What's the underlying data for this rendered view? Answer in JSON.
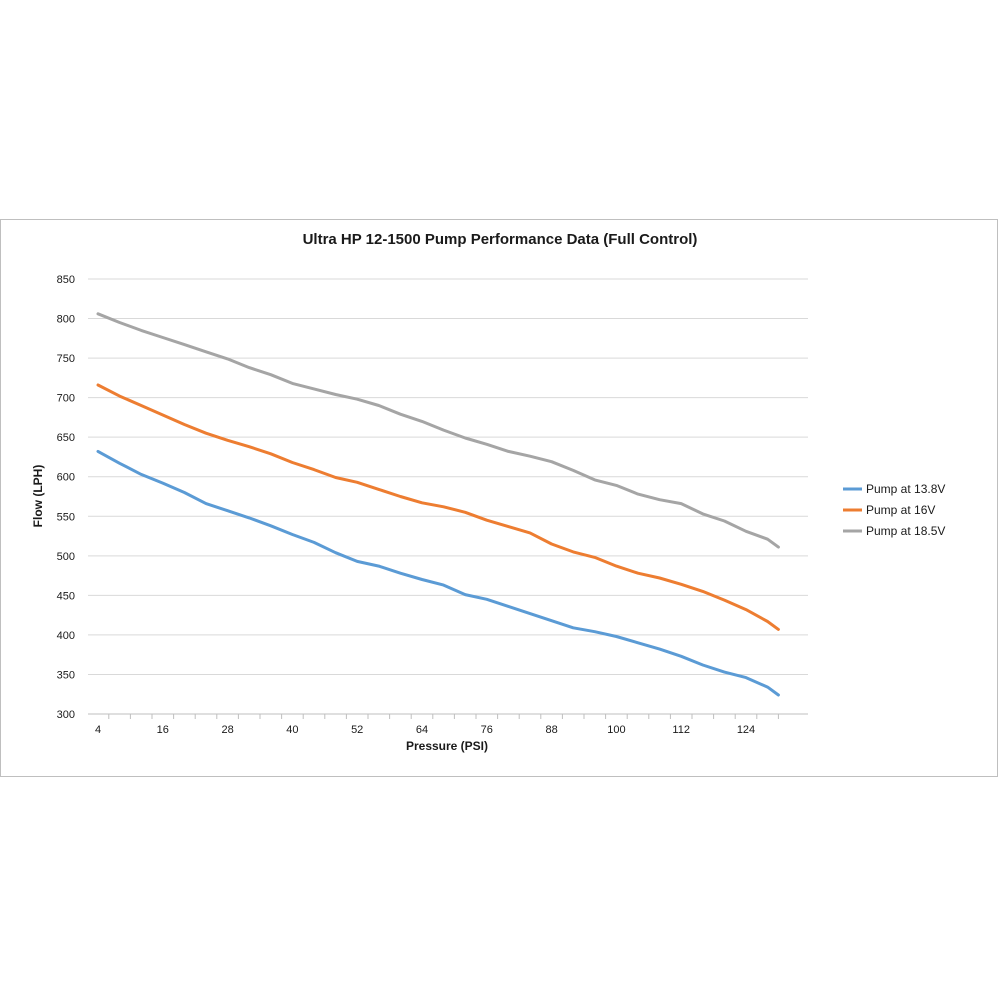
{
  "chart_data": {
    "type": "line",
    "title": "Ultra HP 12-1500 Pump Performance Data (Full Control)",
    "xlabel": "Pressure (PSI)",
    "ylabel": "Flow (LPH)",
    "ylim": [
      300,
      850
    ],
    "y_ticks": [
      300,
      350,
      400,
      450,
      500,
      550,
      600,
      650,
      700,
      750,
      800,
      850
    ],
    "x_tick_labels": [
      "4",
      "16",
      "28",
      "40",
      "52",
      "64",
      "76",
      "88",
      "100",
      "112",
      "124"
    ],
    "x_range": [
      4,
      130
    ],
    "grid": "horizontal",
    "legend_position": "right",
    "x": [
      4,
      8,
      12,
      16,
      20,
      24,
      28,
      32,
      36,
      40,
      44,
      48,
      52,
      56,
      60,
      64,
      68,
      72,
      76,
      80,
      84,
      88,
      92,
      96,
      100,
      104,
      108,
      112,
      116,
      120,
      124,
      128,
      130
    ],
    "series": [
      {
        "name": "Pump at 13.8V",
        "color": "#5b9bd5",
        "values": [
          632,
          617,
          603,
          592,
          580,
          566,
          557,
          548,
          538,
          527,
          517,
          504,
          493,
          487,
          478,
          470,
          463,
          451,
          445,
          436,
          427,
          418,
          409,
          404,
          398,
          390,
          382,
          373,
          362,
          353,
          346,
          334,
          324
        ]
      },
      {
        "name": "Pump at 16V",
        "color": "#ed7d31",
        "values": [
          716,
          702,
          690,
          678,
          666,
          655,
          646,
          638,
          629,
          618,
          609,
          599,
          593,
          584,
          575,
          567,
          562,
          555,
          545,
          537,
          529,
          515,
          505,
          498,
          487,
          478,
          472,
          464,
          455,
          444,
          432,
          417,
          407
        ]
      },
      {
        "name": "Pump at 18.5V",
        "color": "#a5a5a5",
        "values": [
          806,
          795,
          785,
          776,
          767,
          758,
          749,
          738,
          729,
          718,
          711,
          704,
          698,
          690,
          679,
          670,
          659,
          649,
          641,
          632,
          626,
          619,
          608,
          596,
          589,
          578,
          571,
          566,
          553,
          544,
          531,
          521,
          511
        ]
      }
    ]
  }
}
